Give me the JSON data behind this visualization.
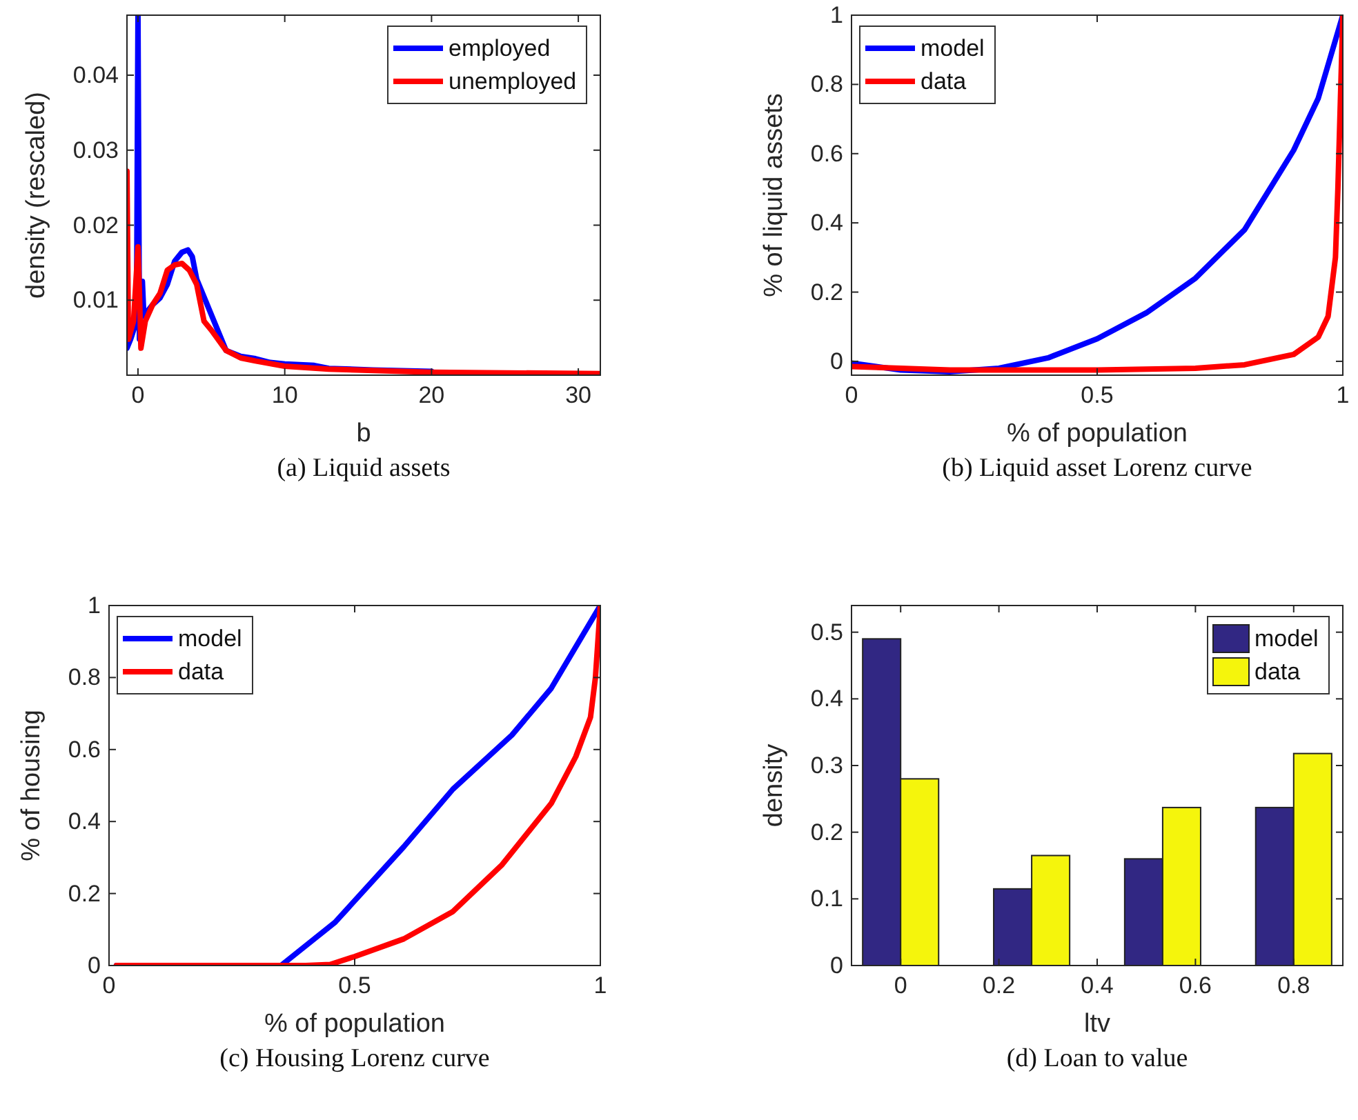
{
  "chart_data": [
    {
      "type": "line",
      "title": "(a) Liquid assets",
      "xlabel": "b",
      "ylabel": "density (rescaled)",
      "xlim": [
        -0.75,
        31.5
      ],
      "ylim": [
        0,
        0.048
      ],
      "xticks": [
        0,
        10,
        20,
        30
      ],
      "yticks": [
        0.01,
        0.02,
        0.03,
        0.04
      ],
      "legend": "top right",
      "series": [
        {
          "name": "employed",
          "color": "#0000ff",
          "x": [
            -0.75,
            -0.5,
            -0.1,
            0,
            0.1,
            0.3,
            0.4,
            1,
            1.5,
            2,
            2.5,
            3,
            3.4,
            3.7,
            4,
            6,
            7,
            8,
            9,
            10,
            12,
            13,
            16,
            20
          ],
          "values": [
            0.0036,
            0.0048,
            0.0072,
            0.048,
            0.0048,
            0.0125,
            0.0079,
            0.0094,
            0.0103,
            0.0121,
            0.0152,
            0.0164,
            0.0167,
            0.0158,
            0.0128,
            0.0033,
            0.0025,
            0.0022,
            0.0017,
            0.0015,
            0.0013,
            0.0009,
            0.0007,
            0.0005
          ]
        },
        {
          "name": "unemployed",
          "color": "#ff0000",
          "x": [
            -0.75,
            -0.65,
            -0.3,
            0,
            0.1,
            0.2,
            0.5,
            1,
            1.5,
            2,
            2.5,
            3,
            3.5,
            4,
            4.5,
            5,
            6,
            7,
            8,
            10,
            13,
            20,
            31.5
          ],
          "values": [
            0.0272,
            0.0048,
            0.0072,
            0.0171,
            0.0109,
            0.0036,
            0.0072,
            0.0094,
            0.0109,
            0.014,
            0.0147,
            0.0149,
            0.014,
            0.0121,
            0.0072,
            0.006,
            0.0033,
            0.0023,
            0.0019,
            0.0012,
            0.0008,
            0.0004,
            0.0002
          ]
        }
      ]
    },
    {
      "type": "line",
      "title": "(b) Liquid asset Lorenz curve",
      "xlabel": "% of population",
      "ylabel": "% of liquid assets",
      "xlim": [
        0,
        1
      ],
      "ylim": [
        -0.04,
        1
      ],
      "xticks": [
        0,
        0.5,
        1
      ],
      "yticks": [
        0,
        0.2,
        0.4,
        0.6,
        0.8,
        1
      ],
      "legend": "top left",
      "series": [
        {
          "name": "model",
          "color": "#0000ff",
          "x": [
            0,
            0.1,
            0.2,
            0.3,
            0.4,
            0.5,
            0.6,
            0.7,
            0.8,
            0.9,
            0.95,
            1
          ],
          "values": [
            -0.005,
            -0.025,
            -0.03,
            -0.02,
            0.01,
            0.065,
            0.14,
            0.24,
            0.38,
            0.61,
            0.76,
            1
          ]
        },
        {
          "name": "data",
          "color": "#ff0000",
          "x": [
            0,
            0.2,
            0.5,
            0.7,
            0.8,
            0.9,
            0.95,
            0.97,
            0.985,
            0.99,
            0.995,
            1
          ],
          "values": [
            -0.015,
            -0.025,
            -0.025,
            -0.02,
            -0.01,
            0.02,
            0.07,
            0.13,
            0.3,
            0.5,
            0.75,
            1
          ]
        }
      ]
    },
    {
      "type": "line",
      "title": "(c) Housing Lorenz curve",
      "xlabel": "% of population",
      "ylabel": "% of housing",
      "xlim": [
        0,
        1
      ],
      "ylim": [
        0,
        1
      ],
      "xticks": [
        0,
        0.5,
        1
      ],
      "yticks": [
        0,
        0.2,
        0.4,
        0.6,
        0.8,
        1
      ],
      "legend": "top left",
      "series": [
        {
          "name": "model",
          "color": "#0000ff",
          "x": [
            0.015,
            0.35,
            0.46,
            0.6,
            0.7,
            0.82,
            0.9,
            1
          ],
          "values": [
            0,
            0,
            0.12,
            0.33,
            0.49,
            0.64,
            0.77,
            1
          ]
        },
        {
          "name": "data",
          "color": "#ff0000",
          "x": [
            0.015,
            0.4,
            0.45,
            0.5,
            0.6,
            0.7,
            0.8,
            0.9,
            0.95,
            0.98,
            0.99,
            1
          ],
          "values": [
            0,
            0,
            0.003,
            0.025,
            0.074,
            0.15,
            0.28,
            0.45,
            0.58,
            0.69,
            0.8,
            1
          ]
        }
      ]
    },
    {
      "type": "bar",
      "title": "(d) Loan to value",
      "xlabel": "ltv",
      "ylabel": "density",
      "x": [
        0,
        0.2667,
        0.5333,
        0.8
      ],
      "xlim": [
        -0.1,
        0.9
      ],
      "ylim": [
        0,
        0.54
      ],
      "xticks": [
        0,
        0.2,
        0.4,
        0.6,
        0.8
      ],
      "yticks": [
        0,
        0.1,
        0.2,
        0.3,
        0.4,
        0.5
      ],
      "legend": "top right",
      "series": [
        {
          "name": "model",
          "color": "#312783",
          "values": [
            0.49,
            0.115,
            0.16,
            0.237
          ]
        },
        {
          "name": "data",
          "color": "#f5f50c",
          "values": [
            0.28,
            0.165,
            0.237,
            0.318
          ]
        }
      ]
    }
  ]
}
